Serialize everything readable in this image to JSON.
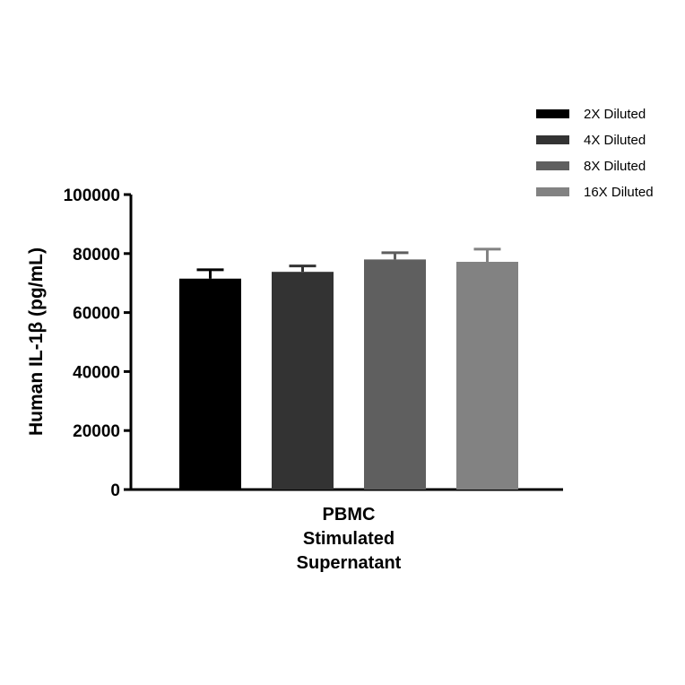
{
  "chart_data": {
    "type": "bar",
    "categories": [
      "PBMC Stimulated Supernatant"
    ],
    "category_label_lines": [
      "PBMC",
      "Stimulated",
      "Supernatant"
    ],
    "series": [
      {
        "name": "2X Diluted",
        "values": [
          71500
        ],
        "error": [
          3000
        ],
        "color": "#000000"
      },
      {
        "name": "4X Diluted",
        "values": [
          73800
        ],
        "error": [
          2000
        ],
        "color": "#333333"
      },
      {
        "name": "8X Diluted",
        "values": [
          78000
        ],
        "error": [
          2300
        ],
        "color": "#5f5f5f"
      },
      {
        "name": "16X Diluted",
        "values": [
          77200
        ],
        "error": [
          4300
        ],
        "color": "#828282"
      }
    ],
    "title": "",
    "xlabel": "",
    "ylabel": "Human IL-1β (pg/mL)",
    "ylim": [
      0,
      100000
    ],
    "yticks": [
      0,
      20000,
      40000,
      60000,
      80000,
      100000
    ],
    "ytick_labels": [
      "0",
      "20000",
      "40000",
      "60000",
      "80000",
      "100000"
    ],
    "grid": false,
    "legend_position": "top-right"
  }
}
